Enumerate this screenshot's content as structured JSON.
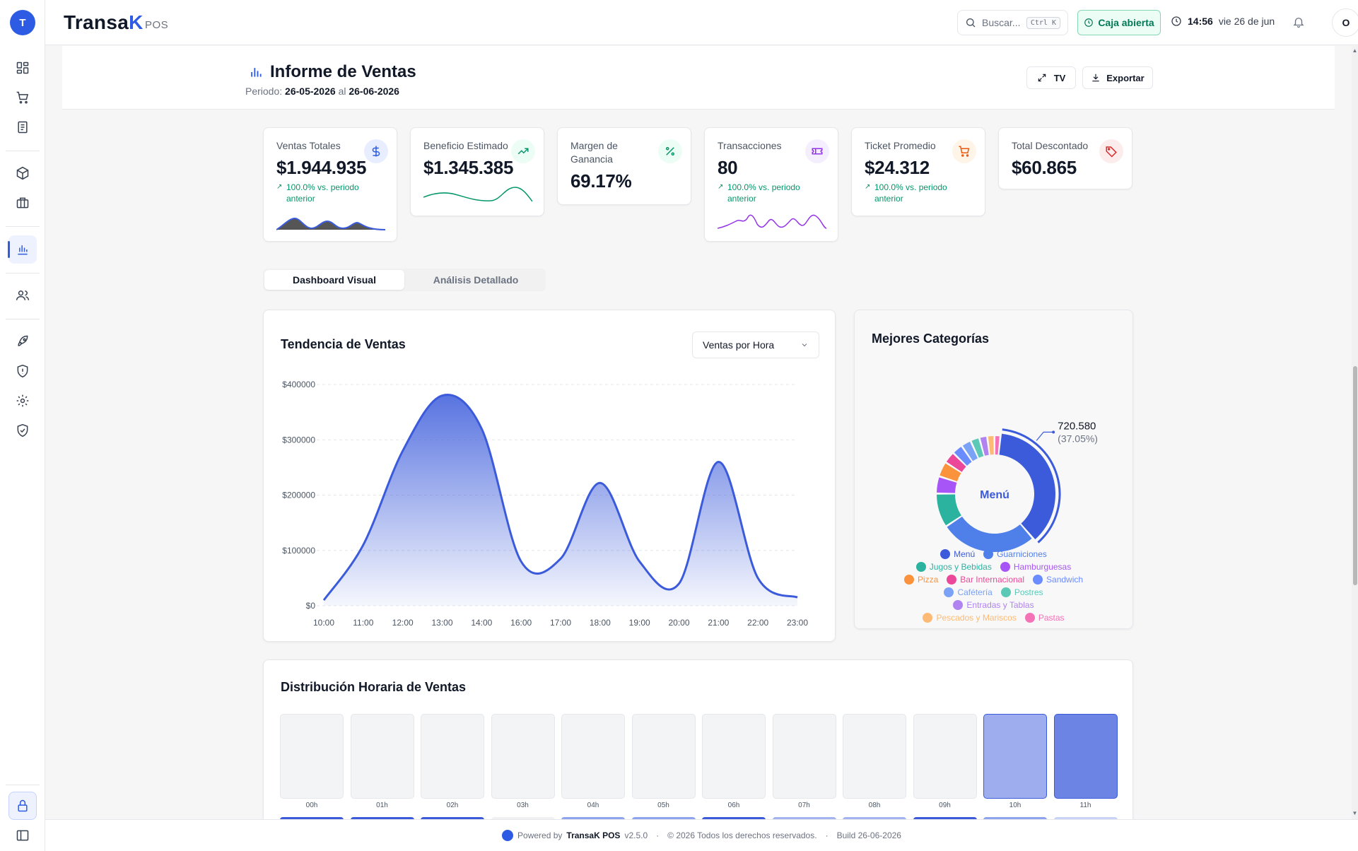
{
  "brand": {
    "name_main": "Transa",
    "name_accent": "K",
    "suffix": "POS",
    "logo_text": "T"
  },
  "topbar": {
    "search_placeholder": "Buscar...",
    "search_shortcut": "Ctrl K",
    "register_status": "Caja abierta",
    "time": "14:56",
    "date": "vie 26 de jun",
    "user_initial": "O"
  },
  "header": {
    "title": "Informe de Ventas",
    "period_label": "Periodo:",
    "period_start": "26-05-2026",
    "period_sep": "al",
    "period_end": "26-06-2026",
    "tv_label": "TV",
    "export_label": "Exportar"
  },
  "kpis": [
    {
      "label": "Ventas Totales",
      "value": "$1.944.935",
      "change": "100.0% vs. periodo anterior",
      "icon": "dollar-icon"
    },
    {
      "label": "Beneficio Estimado",
      "value": "$1.345.385",
      "icon": "trending-up-icon"
    },
    {
      "label": "Margen de Ganancia",
      "value": "69.17%",
      "icon": "percent-icon"
    },
    {
      "label": "Transacciones",
      "value": "80",
      "change": "100.0% vs. periodo anterior",
      "icon": "ticket-icon"
    },
    {
      "label": "Ticket Promedio",
      "value": "$24.312",
      "change": "100.0% vs. periodo anterior",
      "icon": "cart-icon"
    },
    {
      "label": "Total Descontado",
      "value": "$60.865",
      "icon": "tag-icon"
    }
  ],
  "tabs": [
    {
      "label": "Dashboard Visual",
      "active": true
    },
    {
      "label": "Análisis Detallado",
      "active": false
    }
  ],
  "trend": {
    "title": "Tendencia de Ventas",
    "select_value": "Ventas por Hora"
  },
  "chart_data": [
    {
      "type": "area",
      "title": "Tendencia de Ventas",
      "categories": [
        "10:00",
        "11:00",
        "12:00",
        "13:00",
        "14:00",
        "16:00",
        "17:00",
        "18:00",
        "19:00",
        "20:00",
        "21:00",
        "22:00",
        "23:00"
      ],
      "values": [
        10000,
        110000,
        280000,
        380000,
        320000,
        80000,
        85000,
        222000,
        80000,
        40000,
        260000,
        50000,
        15000
      ],
      "ylim": [
        0,
        400000
      ],
      "yticks": [
        "$0",
        "$100000",
        "$200000",
        "$300000",
        "$400000"
      ],
      "color": "#3b5bdb",
      "grid": true
    },
    {
      "type": "pie",
      "title": "Mejores Categorías",
      "center_label": "Menú",
      "highlight_value": "720.580",
      "highlight_percent": "(37.05%)",
      "labels": [
        "Menú",
        "Guarniciones",
        "Jugos y Bebidas",
        "Hamburguesas",
        "Pizza",
        "Bar Internacional",
        "Sandwich",
        "Cafétería",
        "Postres",
        "Entradas y Tablas",
        "Pescados y Mariscos",
        "Pastas"
      ],
      "values": [
        37.05,
        27.0,
        9.5,
        4.8,
        4.2,
        3.3,
        3.0,
        2.8,
        2.5,
        2.2,
        2.0,
        1.65
      ],
      "colors": [
        "#3b5bdb",
        "#4f7fe8",
        "#2bb3a0",
        "#a855f7",
        "#fb923c",
        "#ec4899",
        "#6b8cff",
        "#7aa2f7",
        "#5cc9b6",
        "#b083f0",
        "#fdba74",
        "#f472b6"
      ]
    },
    {
      "type": "heatmap",
      "title": "Distribución Horaria de Ventas",
      "categories": [
        "00h",
        "01h",
        "02h",
        "03h",
        "04h",
        "05h",
        "06h",
        "07h",
        "08h",
        "09h",
        "10h",
        "11h"
      ],
      "values": [
        0,
        0,
        0,
        0,
        0,
        0,
        0,
        0,
        0,
        0,
        0.3,
        0.55
      ]
    }
  ],
  "categories_panel": {
    "title": "Mejores Categorías"
  },
  "hourly": {
    "title": "Distribución Horaria de Ventas"
  },
  "footer": {
    "powered_by": "Powered by",
    "product": "TransaK POS",
    "version": "v2.5.0",
    "copyright": "© 2026 Todos los derechos reservados.",
    "build": "Build 26-06-2026"
  },
  "colors": {
    "primary": "#2d5be3",
    "success": "#059669",
    "border": "#e5e7eb"
  }
}
